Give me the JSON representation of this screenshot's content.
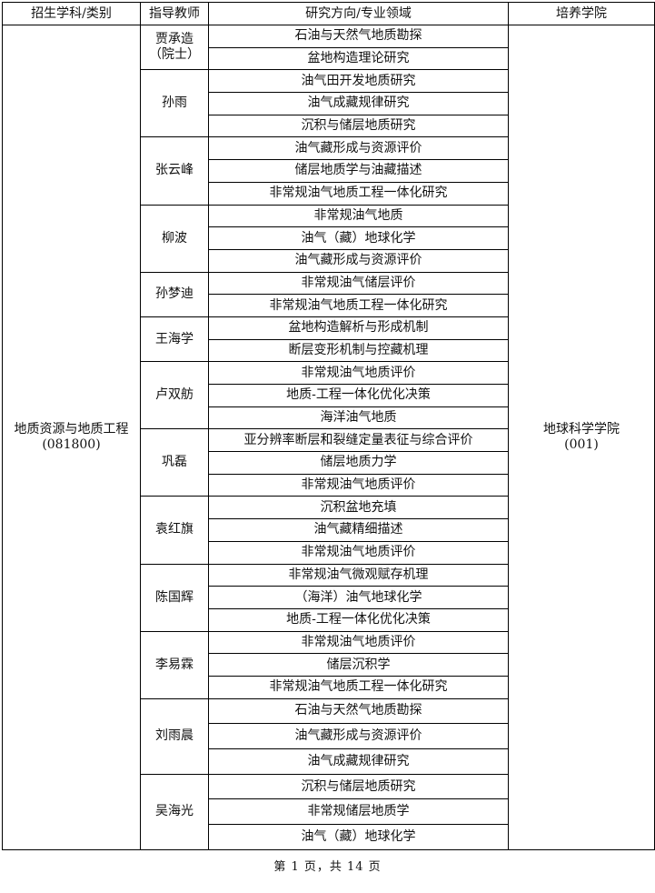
{
  "table": {
    "headers": [
      "招生学科/类别",
      "指导教师",
      "研究方向/专业领域",
      "培养学院"
    ],
    "discipline": {
      "name": "地质资源与地质工程",
      "code": "(081800)"
    },
    "college": {
      "name": "地球科学学院",
      "code": "(001)"
    },
    "advisors": [
      {
        "name": "贾承造（院士）",
        "directions": [
          "石油与天然气地质勘探",
          "盆地构造理论研究"
        ]
      },
      {
        "name": "孙雨",
        "directions": [
          "油气田开发地质研究",
          "油气成藏规律研究",
          "沉积与储层地质研究"
        ]
      },
      {
        "name": "张云峰",
        "directions": [
          "油气藏形成与资源评价",
          "储层地质学与油藏描述",
          "非常规油气地质工程一体化研究"
        ]
      },
      {
        "name": "柳波",
        "directions": [
          "非常规油气地质",
          "油气（藏）地球化学",
          "油气藏形成与资源评价"
        ]
      },
      {
        "name": "孙梦迪",
        "directions": [
          "非常规油气储层评价",
          "非常规油气地质工程一体化研究"
        ]
      },
      {
        "name": "王海学",
        "directions": [
          "盆地构造解析与形成机制",
          "断层变形机制与控藏机理"
        ]
      },
      {
        "name": "卢双舫",
        "directions": [
          "非常规油气地质评价",
          "地质-工程一体化优化决策",
          "海洋油气地质"
        ]
      },
      {
        "name": "巩磊",
        "directions": [
          "亚分辨率断层和裂缝定量表征与综合评价",
          "储层地质力学",
          "非常规油气地质评价"
        ]
      },
      {
        "name": "袁红旗",
        "directions": [
          "沉积盆地充填",
          "油气藏精细描述",
          "非常规油气地质评价"
        ]
      },
      {
        "name": "陈国辉",
        "directions": [
          "非常规油气微观赋存机理",
          "（海洋）油气地球化学",
          "地质-工程一体化优化决策"
        ]
      },
      {
        "name": "李易霖",
        "directions": [
          "非常规油气地质评价",
          "储层沉积学",
          "非常规油气地质工程一体化研究"
        ]
      },
      {
        "name": "刘雨晨",
        "directions": [
          "石油与天然气地质勘探",
          "油气藏形成与资源评价",
          "油气成藏规律研究"
        ]
      },
      {
        "name": "吴海光",
        "directions": [
          "沉积与储层地质研究",
          "非常规储层地质学",
          "油气（藏）地球化学"
        ]
      }
    ]
  },
  "footer": {
    "page_text": "第 1 页，共 14 页"
  }
}
